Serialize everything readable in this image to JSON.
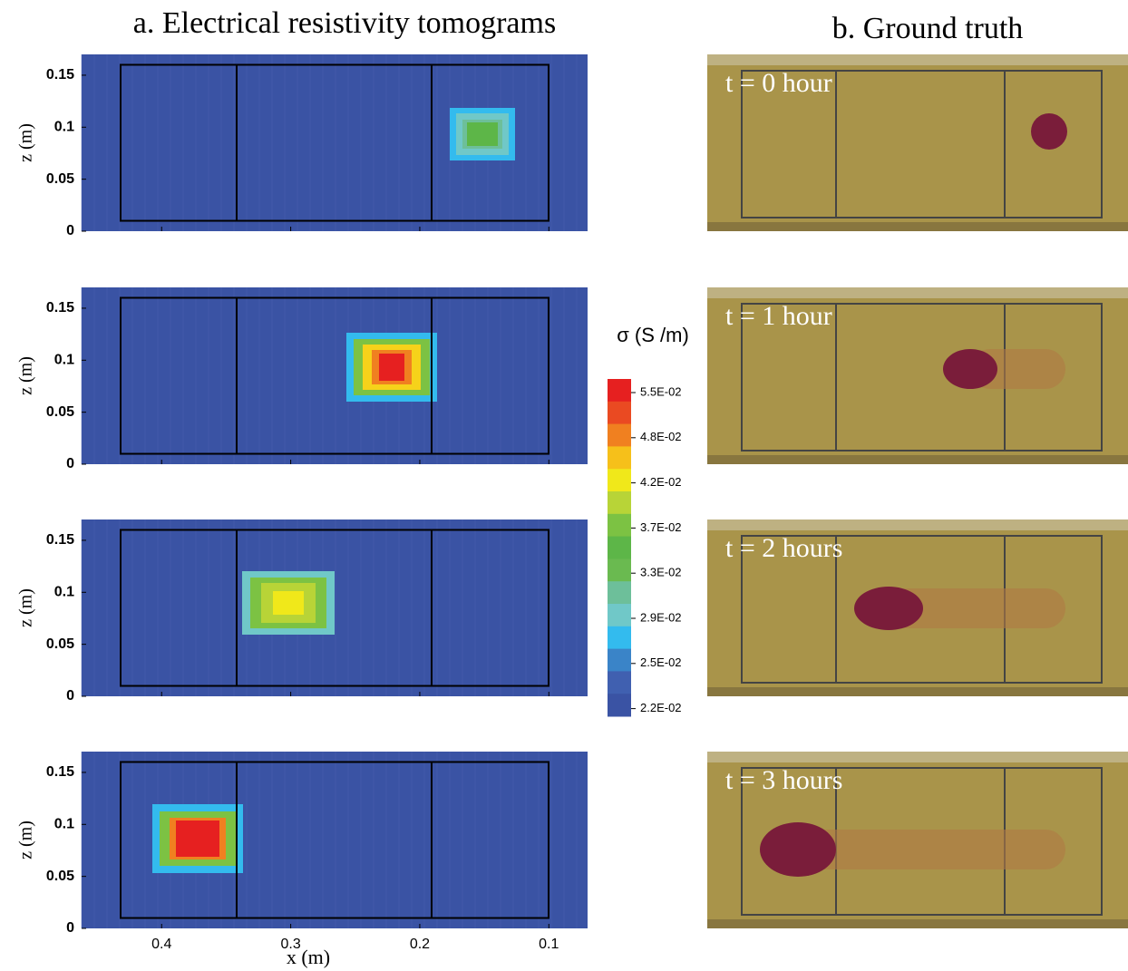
{
  "title_a": "a. Electrical resistivity tomograms",
  "title_b": "b. Ground truth",
  "x_label": "x (m)",
  "z_label": "z (m)",
  "xlim": [
    0.462,
    0.07
  ],
  "zlim": [
    0,
    0.17
  ],
  "xticks": [
    0.4,
    0.3,
    0.2,
    0.1
  ],
  "zticks": [
    0,
    0.05,
    0.1,
    0.15
  ],
  "colorbar": {
    "label": "σ (S /m)",
    "ticks": [
      "5.5E-02",
      "4.8E-02",
      "4.2E-02",
      "3.7E-02",
      "3.3E-02",
      "2.9E-02",
      "2.5E-02",
      "2.2E-02"
    ]
  },
  "photos": [
    {
      "label": "t = 0 hour"
    },
    {
      "label": "t = 1 hour"
    },
    {
      "label": "t = 2 hours"
    },
    {
      "label": "t = 3 hours"
    }
  ]
}
